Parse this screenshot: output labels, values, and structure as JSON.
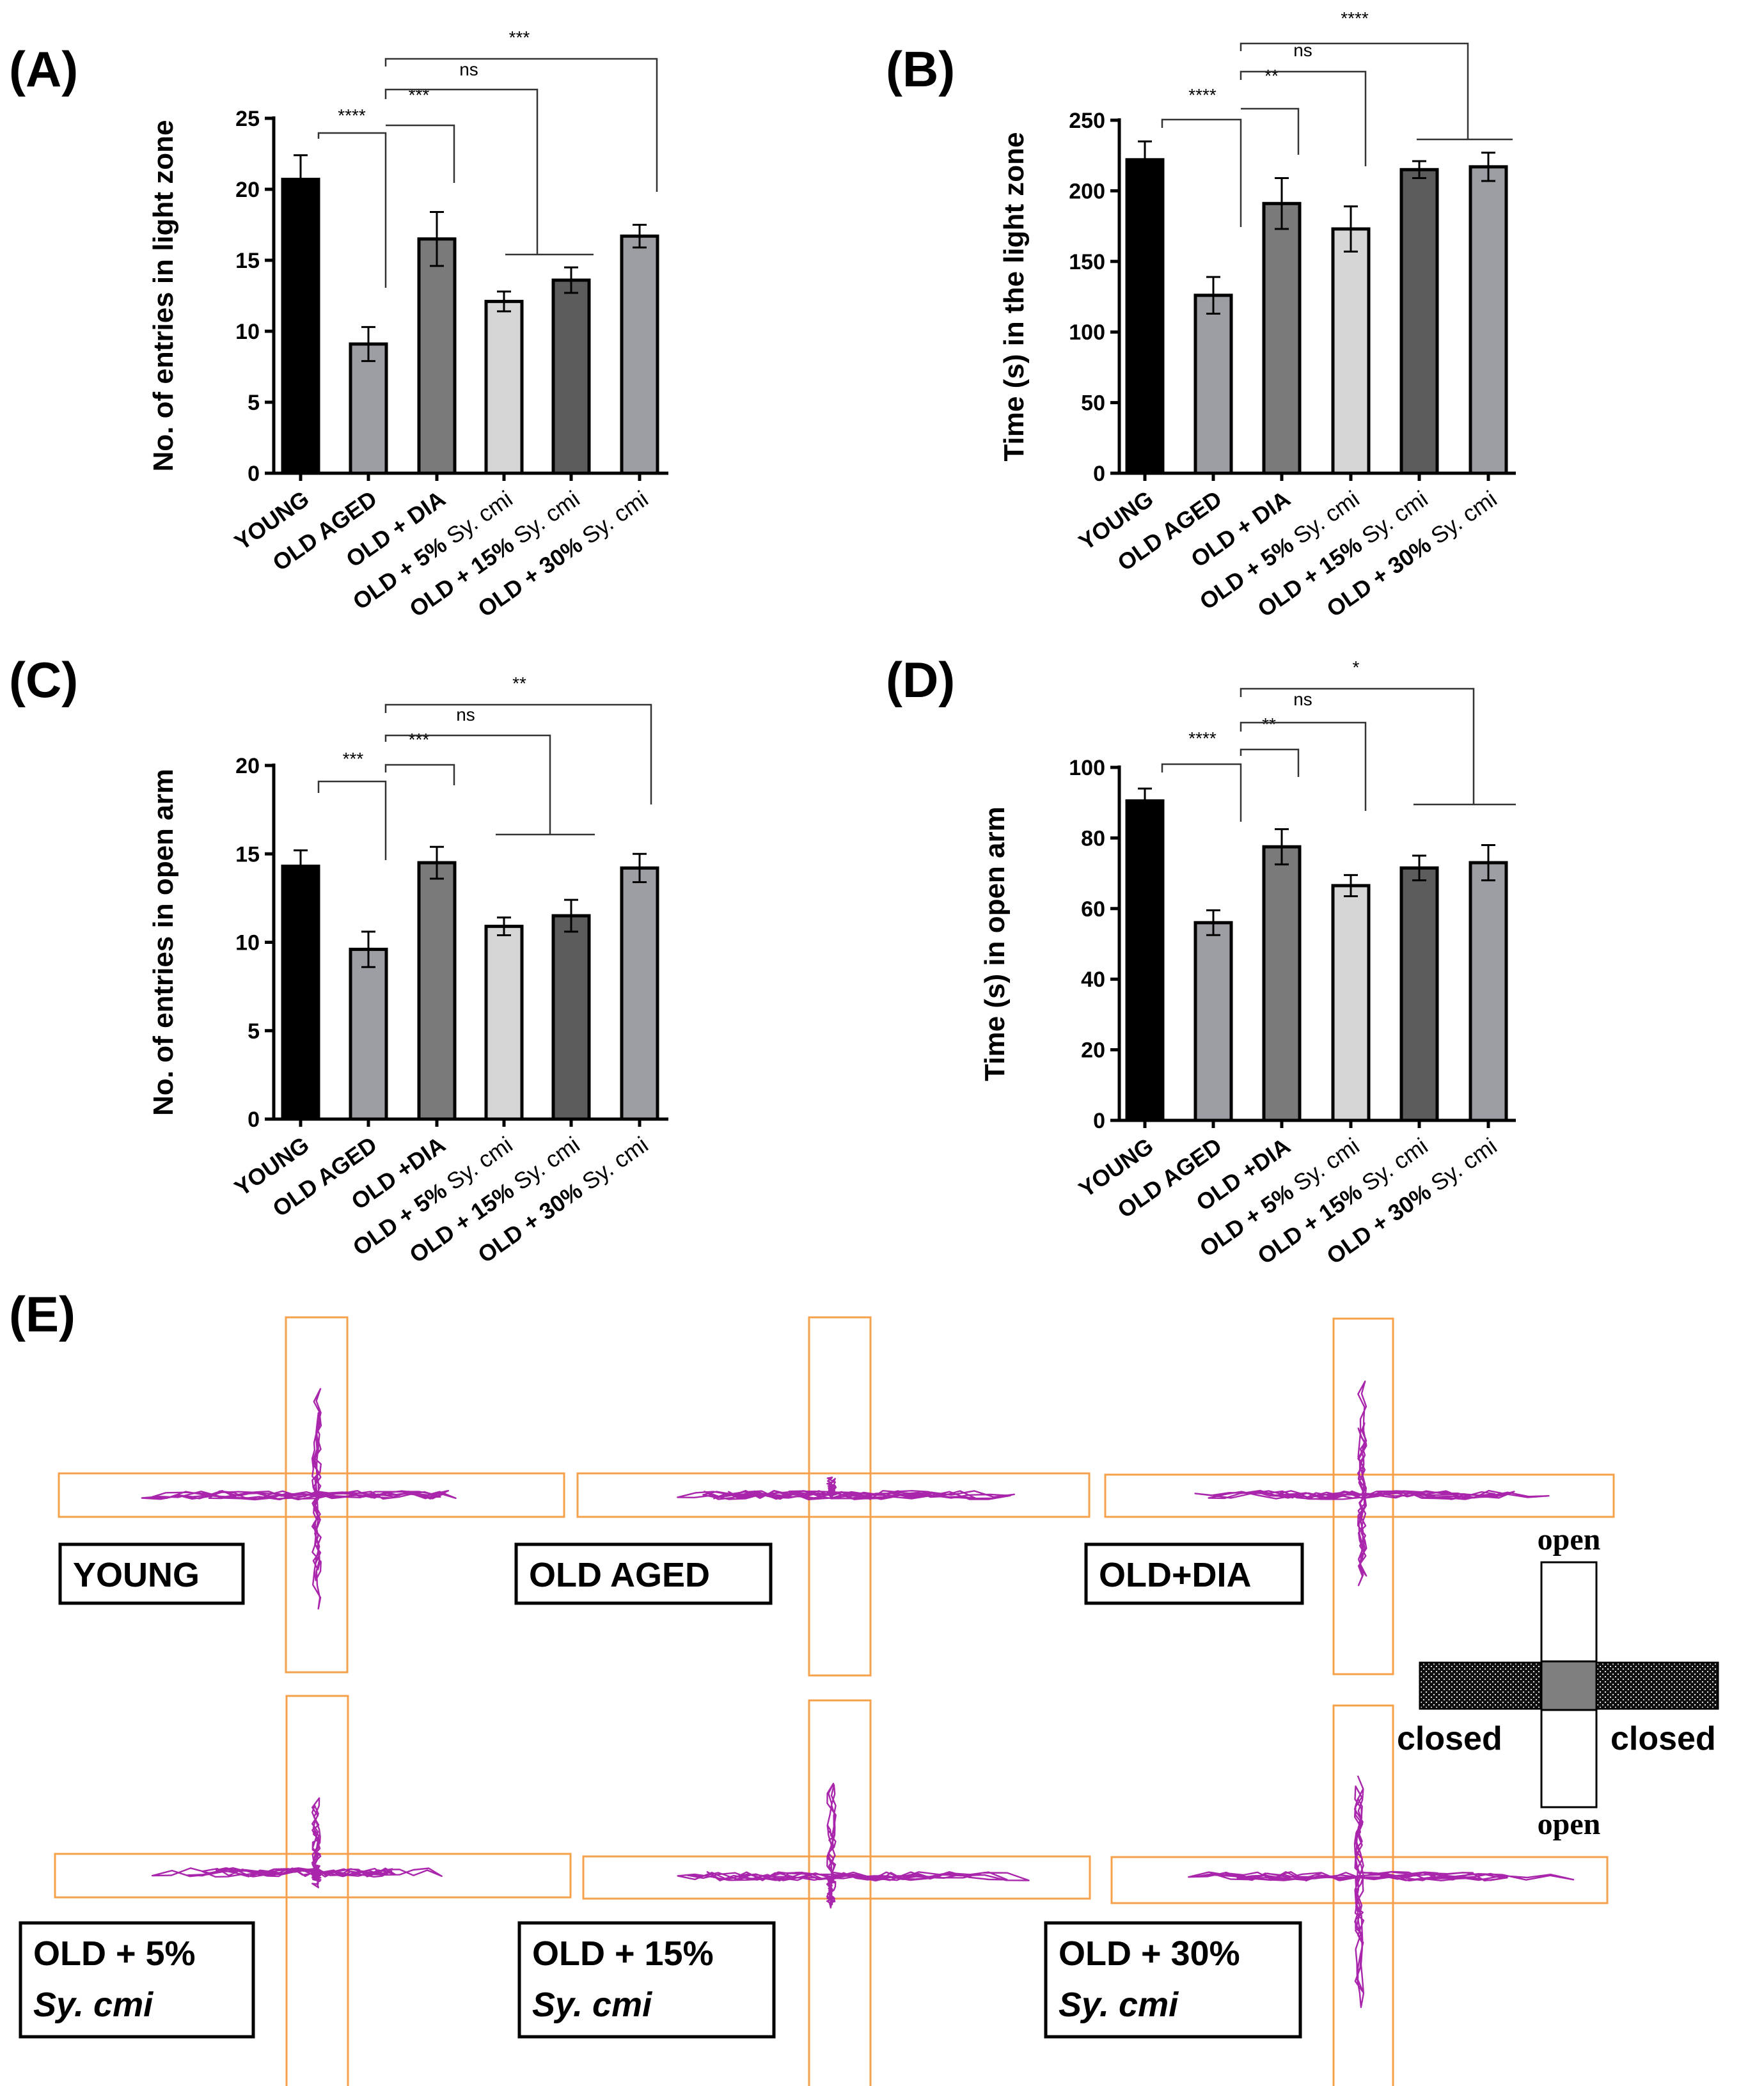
{
  "chart_data": [
    {
      "type": "bar",
      "panel": "(A)",
      "ylabel": "No. of entries in light zone",
      "ylim": [
        0,
        25
      ],
      "yticks": [
        0,
        5,
        10,
        15,
        20,
        25
      ],
      "categories": [
        {
          "bold": "YOUNG",
          "light": ""
        },
        {
          "bold": "OLD AGED",
          "light": ""
        },
        {
          "bold": "OLD + DIA",
          "light": ""
        },
        {
          "bold": "OLD + 5%",
          "light": " Sy. cmi"
        },
        {
          "bold": "OLD + 15%",
          "light": " Sy. cmi"
        },
        {
          "bold": "OLD + 30%",
          "light": " Sy. cmi"
        }
      ],
      "values": [
        20.7,
        9.1,
        16.5,
        12.1,
        13.6,
        16.7
      ],
      "errors": [
        1.7,
        1.2,
        1.9,
        0.7,
        0.9,
        0.8
      ],
      "colors": [
        "#000000",
        "#9d9ea4",
        "#7a7a7a",
        "#d6d6d6",
        "#5c5c5c",
        "#9d9ea4"
      ],
      "annotations": [
        "****",
        "***",
        "ns",
        "***"
      ]
    },
    {
      "type": "bar",
      "panel": "(B)",
      "ylabel": "Time (s) in the light zone",
      "ylim": [
        0,
        250
      ],
      "yticks": [
        0,
        50,
        100,
        150,
        200,
        250
      ],
      "categories": [
        {
          "bold": "YOUNG",
          "light": ""
        },
        {
          "bold": "OLD AGED",
          "light": ""
        },
        {
          "bold": "OLD + DIA",
          "light": ""
        },
        {
          "bold": "OLD + 5%",
          "light": " Sy. cmi"
        },
        {
          "bold": "OLD + 15%",
          "light": " Sy. cmi"
        },
        {
          "bold": "OLD + 30%",
          "light": " Sy. cmi"
        }
      ],
      "values": [
        222,
        126,
        191,
        173,
        215,
        217
      ],
      "errors": [
        13,
        13,
        18,
        16,
        6,
        10
      ],
      "colors": [
        "#000000",
        "#9d9ea4",
        "#7a7a7a",
        "#d6d6d6",
        "#5c5c5c",
        "#9d9ea4"
      ],
      "annotations": [
        "****",
        "**",
        "ns",
        "****"
      ]
    },
    {
      "type": "bar",
      "panel": "(C)",
      "ylabel": "No. of entries in open arm",
      "ylim": [
        0,
        20
      ],
      "yticks": [
        0,
        5,
        10,
        15,
        20
      ],
      "categories": [
        {
          "bold": "YOUNG",
          "light": ""
        },
        {
          "bold": "OLD AGED",
          "light": ""
        },
        {
          "bold": "OLD +DIA",
          "light": ""
        },
        {
          "bold": "OLD + 5%",
          "light": " Sy. cmi"
        },
        {
          "bold": "OLD + 15%",
          "light": " Sy. cmi"
        },
        {
          "bold": "OLD + 30%",
          "light": " Sy. cmi"
        }
      ],
      "values": [
        14.3,
        9.6,
        14.5,
        10.9,
        11.5,
        14.2
      ],
      "errors": [
        0.9,
        1.0,
        0.9,
        0.5,
        0.9,
        0.8
      ],
      "colors": [
        "#000000",
        "#9d9ea4",
        "#7a7a7a",
        "#d6d6d6",
        "#5c5c5c",
        "#9d9ea4"
      ],
      "annotations": [
        "***",
        "***",
        "ns",
        "**"
      ]
    },
    {
      "type": "bar",
      "panel": "(D)",
      "ylabel": "Time (s) in open arm",
      "ylim": [
        0,
        100
      ],
      "yticks": [
        0,
        20,
        40,
        60,
        80,
        100
      ],
      "categories": [
        {
          "bold": "YOUNG",
          "light": ""
        },
        {
          "bold": "OLD AGED",
          "light": ""
        },
        {
          "bold": "OLD +DIA",
          "light": ""
        },
        {
          "bold": "OLD + 5%",
          "light": " Sy. cmi"
        },
        {
          "bold": "OLD + 15%",
          "light": " Sy. cmi"
        },
        {
          "bold": "OLD + 30%",
          "light": " Sy. cmi"
        }
      ],
      "values": [
        90.5,
        56,
        77.5,
        66.5,
        71.5,
        73
      ],
      "errors": [
        3.5,
        3.5,
        5,
        3,
        3.5,
        5
      ],
      "colors": [
        "#000000",
        "#9d9ea4",
        "#7a7a7a",
        "#d6d6d6",
        "#5c5c5c",
        "#9d9ea4"
      ],
      "annotations": [
        "****",
        "**",
        "ns",
        "*"
      ]
    }
  ],
  "panel_e": {
    "letter": "(E)",
    "groups": [
      {
        "line1": "YOUNG",
        "line2": ""
      },
      {
        "line1": "OLD AGED",
        "line2": ""
      },
      {
        "line1": "OLD+DIA",
        "line2": ""
      },
      {
        "line1": "OLD + 5%",
        "line2": "Sy. cmi"
      },
      {
        "line1": "OLD + 15%",
        "line2": "Sy. cmi"
      },
      {
        "line1": "OLD + 30%",
        "line2": "Sy. cmi"
      }
    ],
    "legend": {
      "open": "open",
      "closed": "closed"
    },
    "colors": {
      "maze": "#f5a04a",
      "track": "#a41aa8"
    }
  }
}
